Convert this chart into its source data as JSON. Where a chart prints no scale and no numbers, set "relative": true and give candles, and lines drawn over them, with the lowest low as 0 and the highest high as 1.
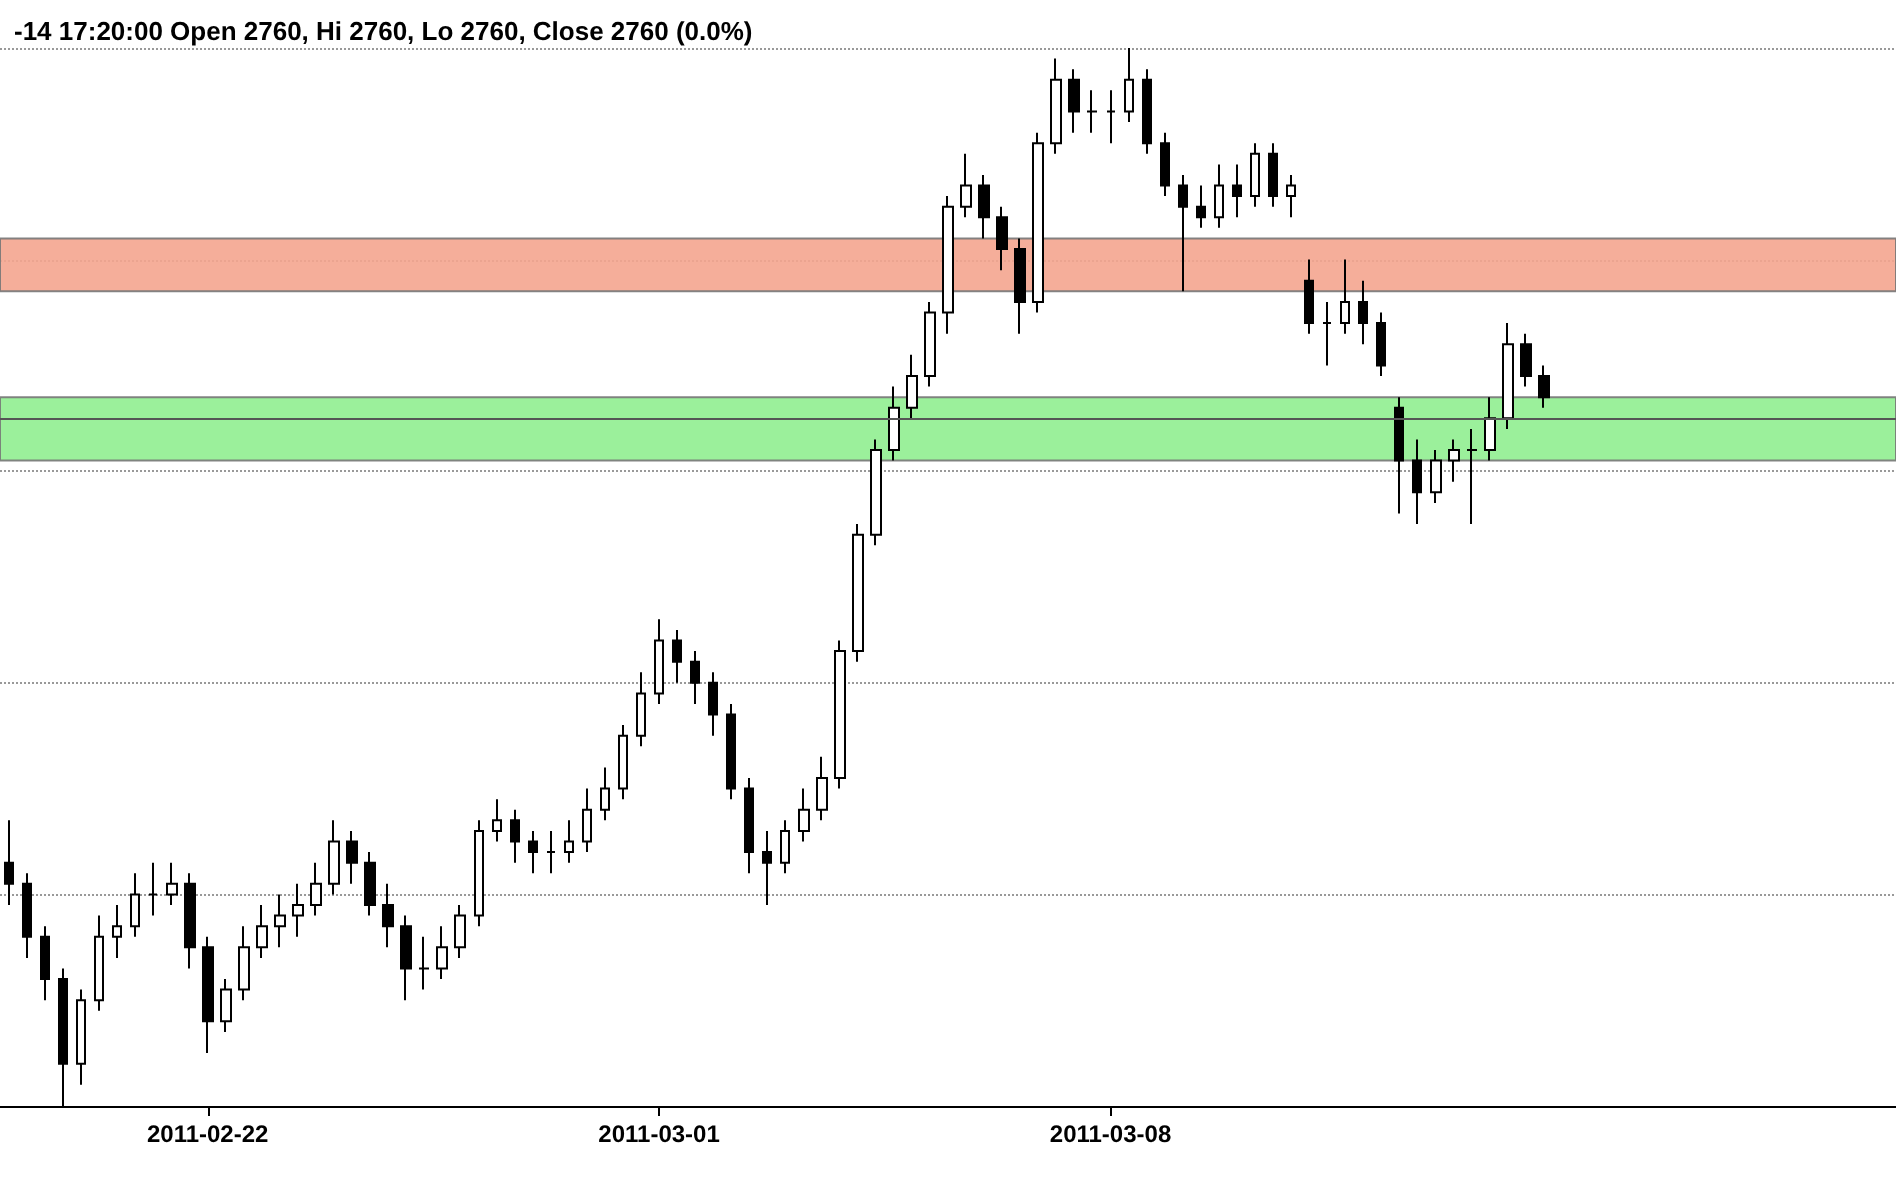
{
  "chart_data": {
    "type": "candlestick",
    "title": "-14 17:20:00 Open 2760, Hi 2760, Lo 2760, Close 2760 (0.0%)",
    "relative": true,
    "grid": "y",
    "categories": [
      null,
      null,
      null,
      null,
      null,
      null,
      null,
      null,
      null,
      null,
      null,
      "2011-02-22",
      null,
      null,
      null,
      null,
      null,
      null,
      null,
      null,
      null,
      null,
      null,
      null,
      null,
      null,
      null,
      null,
      null,
      null,
      null,
      null,
      null,
      null,
      null,
      null,
      "2011-03-01",
      null,
      null,
      null,
      null,
      null,
      null,
      null,
      null,
      null,
      null,
      null,
      null,
      null,
      null,
      null,
      null,
      null,
      null,
      null,
      null,
      null,
      null,
      null,
      null,
      "2011-03-08",
      null,
      null,
      null,
      null,
      null,
      null,
      null,
      null,
      null,
      null,
      null,
      null,
      null,
      null,
      null,
      null,
      null,
      null,
      null,
      null,
      null,
      null,
      null,
      null,
      null,
      null,
      null,
      null,
      null,
      null,
      null,
      null,
      null,
      null,
      null,
      null,
      null,
      null,
      null,
      null,
      null,
      null,
      null
    ],
    "ohlc": [
      [
        0.23,
        0.27,
        0.19,
        0.21
      ],
      [
        0.21,
        0.22,
        0.14,
        0.16
      ],
      [
        0.16,
        0.17,
        0.1,
        0.12
      ],
      [
        0.12,
        0.13,
        0,
        0.04
      ],
      [
        0.04,
        0.11,
        0.02,
        0.1
      ],
      [
        0.1,
        0.18,
        0.09,
        0.16
      ],
      [
        0.16,
        0.19,
        0.14,
        0.17
      ],
      [
        0.17,
        0.22,
        0.16,
        0.2
      ],
      [
        0.2,
        0.23,
        0.18,
        0.2
      ],
      [
        0.2,
        0.23,
        0.19,
        0.21
      ],
      [
        0.21,
        0.22,
        0.13,
        0.15
      ],
      [
        0.15,
        0.16,
        0.05,
        0.08
      ],
      [
        0.08,
        0.12,
        0.07,
        0.11
      ],
      [
        0.11,
        0.17,
        0.1,
        0.15
      ],
      [
        0.15,
        0.19,
        0.14,
        0.17
      ],
      [
        0.17,
        0.2,
        0.15,
        0.18
      ],
      [
        0.18,
        0.21,
        0.16,
        0.19
      ],
      [
        0.19,
        0.23,
        0.18,
        0.21
      ],
      [
        0.21,
        0.27,
        0.2,
        0.25
      ],
      [
        0.25,
        0.26,
        0.21,
        0.23
      ],
      [
        0.23,
        0.24,
        0.18,
        0.19
      ],
      [
        0.19,
        0.21,
        0.15,
        0.17
      ],
      [
        0.17,
        0.18,
        0.1,
        0.13
      ],
      [
        0.13,
        0.16,
        0.11,
        0.13
      ],
      [
        0.13,
        0.17,
        0.12,
        0.15
      ],
      [
        0.15,
        0.19,
        0.14,
        0.18
      ],
      [
        0.18,
        0.27,
        0.17,
        0.26
      ],
      [
        0.26,
        0.29,
        0.25,
        0.27
      ],
      [
        0.27,
        0.28,
        0.23,
        0.25
      ],
      [
        0.25,
        0.26,
        0.22,
        0.24
      ],
      [
        0.24,
        0.26,
        0.22,
        0.24
      ],
      [
        0.24,
        0.27,
        0.23,
        0.25
      ],
      [
        0.25,
        0.3,
        0.24,
        0.28
      ],
      [
        0.28,
        0.32,
        0.27,
        0.3
      ],
      [
        0.3,
        0.36,
        0.29,
        0.35
      ],
      [
        0.35,
        0.41,
        0.34,
        0.39
      ],
      [
        0.39,
        0.46,
        0.38,
        0.44
      ],
      [
        0.44,
        0.45,
        0.4,
        0.42
      ],
      [
        0.42,
        0.43,
        0.38,
        0.4
      ],
      [
        0.4,
        0.41,
        0.35,
        0.37
      ],
      [
        0.37,
        0.38,
        0.29,
        0.3
      ],
      [
        0.3,
        0.31,
        0.22,
        0.24
      ],
      [
        0.24,
        0.26,
        0.19,
        0.23
      ],
      [
        0.23,
        0.27,
        0.22,
        0.26
      ],
      [
        0.26,
        0.3,
        0.25,
        0.28
      ],
      [
        0.28,
        0.33,
        0.27,
        0.31
      ],
      [
        0.31,
        0.44,
        0.3,
        0.43
      ],
      [
        0.43,
        0.55,
        0.42,
        0.54
      ],
      [
        0.54,
        0.63,
        0.53,
        0.62
      ],
      [
        0.62,
        0.68,
        0.61,
        0.66
      ],
      [
        0.66,
        0.71,
        0.65,
        0.69
      ],
      [
        0.69,
        0.76,
        0.68,
        0.75
      ],
      [
        0.75,
        0.86,
        0.73,
        0.85
      ],
      [
        0.85,
        0.9,
        0.84,
        0.87
      ],
      [
        0.87,
        0.88,
        0.82,
        0.84
      ],
      [
        0.84,
        0.85,
        0.79,
        0.81
      ],
      [
        0.81,
        0.82,
        0.73,
        0.76
      ],
      [
        0.76,
        0.92,
        0.75,
        0.91
      ],
      [
        0.91,
        0.99,
        0.9,
        0.97
      ],
      [
        0.97,
        0.98,
        0.92,
        0.94
      ],
      [
        0.94,
        0.96,
        0.92,
        0.94
      ],
      [
        0.94,
        0.96,
        0.91,
        0.94
      ],
      [
        0.94,
        1,
        0.93,
        0.97
      ],
      [
        0.97,
        0.98,
        0.9,
        0.91
      ],
      [
        0.91,
        0.92,
        0.86,
        0.87
      ],
      [
        0.87,
        0.88,
        0.77,
        0.85
      ],
      [
        0.85,
        0.87,
        0.83,
        0.84
      ],
      [
        0.84,
        0.89,
        0.83,
        0.87
      ],
      [
        0.87,
        0.89,
        0.84,
        0.86
      ],
      [
        0.86,
        0.91,
        0.85,
        0.9
      ],
      [
        0.9,
        0.91,
        0.85,
        0.86
      ],
      [
        0.86,
        0.88,
        0.84,
        0.87
      ],
      [
        0.78,
        0.8,
        0.73,
        0.74
      ],
      [
        0.74,
        0.76,
        0.7,
        0.74
      ],
      [
        0.74,
        0.8,
        0.73,
        0.76
      ],
      [
        0.76,
        0.78,
        0.72,
        0.74
      ],
      [
        0.74,
        0.75,
        0.69,
        0.7
      ],
      [
        0.66,
        0.67,
        0.56,
        0.61
      ],
      [
        0.61,
        0.63,
        0.55,
        0.58
      ],
      [
        0.58,
        0.62,
        0.57,
        0.61
      ],
      [
        0.61,
        0.63,
        0.59,
        0.62
      ],
      [
        0.62,
        0.64,
        0.55,
        0.62
      ],
      [
        0.62,
        0.67,
        0.61,
        0.65
      ],
      [
        0.65,
        0.74,
        0.64,
        0.72
      ],
      [
        0.72,
        0.73,
        0.68,
        0.69
      ],
      [
        0.69,
        0.7,
        0.66,
        0.67
      ],
      null,
      null,
      null,
      null,
      null,
      null,
      null,
      null,
      null,
      null,
      null,
      null,
      null,
      null,
      null,
      null,
      null,
      null,
      null
    ],
    "bands": [
      {
        "axis": "y",
        "from": 0.77,
        "to": 0.82,
        "color": "#f4a58f"
      },
      {
        "axis": "y",
        "from": 0.61,
        "to": 0.67,
        "color": "#90ee90"
      }
    ],
    "ref_lines": [
      {
        "axis": "y",
        "value": 0.65,
        "color": "#555555"
      }
    ]
  }
}
